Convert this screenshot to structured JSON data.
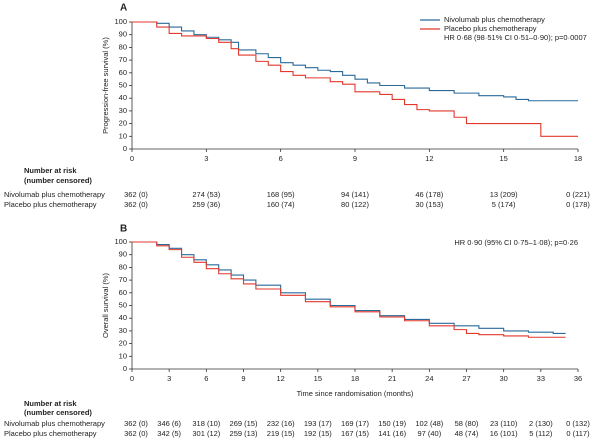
{
  "chart_data": [
    {
      "type": "line",
      "step": true,
      "panel_label": "A",
      "ylabel": "Progression-free survival (%)",
      "annotation": "HR 0·68 (98·51% CI 0·51–0·90); p=0·0007",
      "legend": "upper right",
      "xlim": [
        0,
        18
      ],
      "xticks": [
        0,
        3,
        6,
        9,
        12,
        15,
        18
      ],
      "ylim": [
        0,
        100
      ],
      "yticks": [
        0,
        10,
        20,
        30,
        40,
        50,
        60,
        70,
        80,
        90,
        100
      ],
      "series": [
        {
          "name": "Nivolumab plus chemotherapy",
          "color": "#2a6a9a",
          "x": [
            0,
            1,
            1.5,
            2,
            2.5,
            3,
            3.5,
            4,
            4.3,
            5,
            5.5,
            6,
            6.5,
            7,
            7.5,
            8,
            8.5,
            9,
            9.5,
            10,
            11,
            12,
            13,
            14,
            15,
            15.5,
            16,
            18
          ],
          "values": [
            100,
            99,
            96,
            93,
            90,
            88,
            86,
            84,
            78,
            75,
            72,
            68,
            66,
            64,
            62,
            61,
            58,
            55,
            52,
            50,
            48,
            46,
            44,
            42,
            41,
            39,
            38,
            38
          ]
        },
        {
          "name": "Placebo plus chemotherapy",
          "color": "#e2382b",
          "x": [
            0,
            1,
            1.5,
            2,
            3,
            3.5,
            4,
            4.3,
            5,
            5.5,
            6,
            6.5,
            7,
            8,
            8.5,
            9,
            10,
            10.5,
            11,
            11.5,
            12,
            13,
            13.5,
            15,
            16.5,
            18
          ],
          "values": [
            100,
            96,
            91,
            89,
            87,
            84,
            79,
            74,
            69,
            66,
            61,
            58,
            56,
            53,
            51,
            45,
            43,
            39,
            35,
            31,
            30,
            25,
            20,
            20,
            10,
            10
          ]
        }
      ],
      "risk_table": {
        "title": "Number at risk",
        "subtitle": "(number censored)",
        "rows": [
          {
            "name": "Nivolumab plus chemotherapy",
            "values": [
              "362 (0)",
              "274 (53)",
              "168 (95)",
              "94 (141)",
              "46 (178)",
              "13 (209)",
              "0 (221)"
            ]
          },
          {
            "name": "Placebo plus chemotherapy",
            "values": [
              "362 (0)",
              "259 (36)",
              "160 (74)",
              "80 (122)",
              "30 (153)",
              "5 (174)",
              "0 (178)"
            ]
          }
        ]
      }
    },
    {
      "type": "line",
      "step": true,
      "panel_label": "B",
      "ylabel": "Overall survival (%)",
      "xlabel": "Time since randomisation (months)",
      "annotation": "HR 0·90 (95% CI 0·75–1·08); p=0·26",
      "xlim": [
        0,
        36
      ],
      "xticks": [
        0,
        3,
        6,
        9,
        12,
        15,
        18,
        21,
        24,
        27,
        30,
        33,
        36
      ],
      "ylim": [
        0,
        100
      ],
      "yticks": [
        0,
        10,
        20,
        30,
        40,
        50,
        60,
        70,
        80,
        90,
        100
      ],
      "series": [
        {
          "color": "#2a6a9a",
          "x": [
            0,
            2,
            3,
            4,
            5,
            6,
            7,
            8,
            9,
            10,
            12,
            14,
            16,
            18,
            20,
            22,
            24,
            26,
            28,
            30,
            32,
            34,
            35
          ],
          "values": [
            100,
            98,
            95,
            90,
            86,
            82,
            78,
            74,
            70,
            66,
            60,
            55,
            50,
            46,
            42,
            39,
            36,
            34,
            32,
            30,
            29,
            28,
            28
          ]
        },
        {
          "color": "#e2382b",
          "x": [
            0,
            2,
            3,
            4,
            5,
            6,
            7,
            8,
            9,
            10,
            12,
            14,
            16,
            18,
            20,
            22,
            24,
            26,
            27,
            28,
            30,
            32,
            35
          ],
          "values": [
            100,
            97,
            94,
            88,
            84,
            79,
            75,
            71,
            67,
            63,
            58,
            53,
            49,
            45,
            41,
            38,
            34,
            31,
            28,
            27,
            26,
            25,
            25
          ]
        }
      ],
      "risk_table": {
        "title": "Number at risk",
        "subtitle": "(number censored)",
        "rows": [
          {
            "name": "Nivolumab plus chemotherapy",
            "values": [
              "362 (0)",
              "346 (6)",
              "318 (10)",
              "269 (15)",
              "232 (16)",
              "193 (17)",
              "169 (17)",
              "150 (19)",
              "102 (48)",
              "58 (80)",
              "23 (110)",
              "2 (130)",
              "0 (132)"
            ]
          },
          {
            "name": "Placebo plus chemotherapy",
            "values": [
              "362 (0)",
              "342 (5)",
              "301 (12)",
              "259 (13)",
              "219 (15)",
              "192 (15)",
              "167 (15)",
              "141 (16)",
              "97 (40)",
              "48 (74)",
              "16 (101)",
              "5 (112)",
              "0 (117)"
            ]
          }
        ]
      }
    }
  ]
}
